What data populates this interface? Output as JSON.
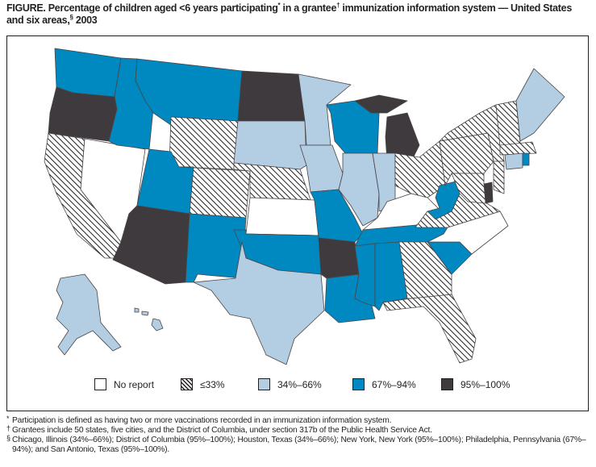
{
  "figure": {
    "title_prefix": "FIGURE. Percentage of children aged <6 years participating",
    "title_mark1": "*",
    "title_mid": " in a grantee",
    "title_mark2": "†",
    "title_rest": " immunization information system — United States and six areas,",
    "title_mark3": "§",
    "title_end": " 2003"
  },
  "colors": {
    "no_report": "#ffffff",
    "le33": "hatched",
    "34-66": "#b3cde3",
    "67-94": "#0088c0",
    "95-100": "#3e3a3d",
    "border": "#4a4546"
  },
  "legend": [
    {
      "key": "no_report",
      "label": "No report"
    },
    {
      "key": "le33",
      "label": "≤33%"
    },
    {
      "key": "34-66",
      "label": "34%–66%"
    },
    {
      "key": "67-94",
      "label": "67%–94%"
    },
    {
      "key": "95-100",
      "label": "95%–100%"
    }
  ],
  "regions": {
    "WA": "67-94",
    "OR": "95-100",
    "CA": "le33",
    "NV": "no_report",
    "ID": "67-94",
    "MT": "67-94",
    "WY": "le33",
    "UT": "67-94",
    "AZ": "95-100",
    "CO": "le33",
    "NM": "67-94",
    "ND": "95-100",
    "SD": "34-66",
    "NE": "le33",
    "KS": "no_report",
    "OK": "67-94",
    "TX": "34-66",
    "MN": "34-66",
    "IA": "34-66",
    "MO": "67-94",
    "AR": "95-100",
    "LA": "67-94",
    "WI": "67-94",
    "IL": "34-66",
    "MI": "95-100",
    "IN": "34-66",
    "OH": "le33",
    "KY": "no_report",
    "TN": "67-94",
    "MS": "67-94",
    "AL": "67-94",
    "GA": "le33",
    "FL": "le33",
    "SC": "67-94",
    "NC": "no_report",
    "VA": "le33",
    "WV": "67-94",
    "PA": "le33",
    "NY": "le33",
    "VTNH": "le33",
    "ME": "34-66",
    "MA": "le33",
    "CT": "34-66",
    "RI": "67-94",
    "NJ": "le33",
    "DE": "95-100",
    "MD": "le33",
    "AK": "34-66",
    "HI": "34-66"
  },
  "footnotes": [
    {
      "mark": "*",
      "text": "Participation is defined as having two or more vaccinations recorded in an immunization information system."
    },
    {
      "mark": "†",
      "text": "Grantees include 50 states, five cities, and the District of Columbia, under section 317b of the Public Health Service Act."
    },
    {
      "mark": "§",
      "text": "Chicago, Illinois (34%–66%); District of Columbia (95%–100%); Houston, Texas (34%–66%); New York, New York (95%–100%); Philadelphia, Pennsylvania (67%–94%); and San Antonio, Texas (95%–100%)."
    }
  ]
}
